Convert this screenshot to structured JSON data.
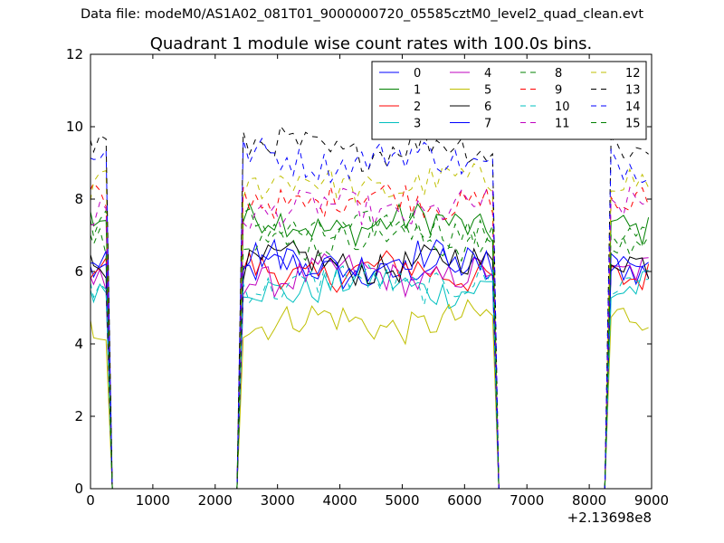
{
  "figure": {
    "suptitle": "Data file: modeM0/AS1A02_081T01_9000000720_05585cztM0_level2_quad_clean.evt"
  },
  "chart_data": {
    "type": "line",
    "title": "Quadrant 1 module wise count rates with 100.0s bins.",
    "xlabel": "",
    "ylabel": "",
    "x_offset_label": "+2.13698e8",
    "xlim": [
      0,
      9000
    ],
    "ylim": [
      0,
      12
    ],
    "xticks": [
      0,
      1000,
      2000,
      3000,
      4000,
      5000,
      6000,
      7000,
      8000,
      9000
    ],
    "yticks": [
      0,
      2,
      4,
      6,
      8,
      10,
      12
    ],
    "xtick_labels": [
      "0",
      "1000",
      "2000",
      "3000",
      "4000",
      "5000",
      "6000",
      "7000",
      "8000",
      "9000"
    ],
    "ytick_labels": [
      "0",
      "2",
      "4",
      "6",
      "8",
      "10",
      "12"
    ],
    "grid": false,
    "legend_position": "top-right",
    "legend_columns": 4,
    "x": [
      0,
      50,
      150,
      250,
      350,
      450,
      550,
      650,
      750,
      850,
      950,
      1050,
      1150,
      1250,
      1350,
      1450,
      1550,
      1650,
      1750,
      1850,
      1950,
      2050,
      2150,
      2250,
      2350,
      2450,
      2550,
      2650,
      2750,
      2850,
      2950,
      3050,
      3150,
      3250,
      3350,
      3450,
      3550,
      3650,
      3750,
      3850,
      3950,
      4050,
      4150,
      4250,
      4350,
      4450,
      4550,
      4650,
      4750,
      4850,
      4950,
      5050,
      5150,
      5250,
      5350,
      5450,
      5550,
      5650,
      5750,
      5850,
      5950,
      6050,
      6150,
      6250,
      6350,
      6450,
      6550,
      6650,
      6750,
      6850,
      6950,
      7050,
      7150,
      7250,
      7350,
      7450,
      7550,
      7650,
      7750,
      7850,
      7950,
      8050,
      8150,
      8250,
      8350,
      8450,
      8550,
      8650,
      8750,
      8850,
      8950
    ],
    "active_segments": [
      [
        0,
        250
      ],
      [
        2450,
        6450
      ],
      [
        8350,
        8950
      ]
    ],
    "series": [
      {
        "name": "0",
        "color": "#0000ff",
        "dash": "solid",
        "mean": 6.0
      },
      {
        "name": "1",
        "color": "#008000",
        "dash": "solid",
        "mean": 7.3
      },
      {
        "name": "2",
        "color": "#ff0000",
        "dash": "solid",
        "mean": 6.0
      },
      {
        "name": "3",
        "color": "#00bfbf",
        "dash": "solid",
        "mean": 5.6
      },
      {
        "name": "4",
        "color": "#bf00bf",
        "dash": "solid",
        "mean": 5.9
      },
      {
        "name": "5",
        "color": "#bfbf00",
        "dash": "solid",
        "mean": 4.6
      },
      {
        "name": "6",
        "color": "#000000",
        "dash": "solid",
        "mean": 6.2
      },
      {
        "name": "7",
        "color": "#0000ff",
        "dash": "solid",
        "mean": 6.3
      },
      {
        "name": "8",
        "color": "#008000",
        "dash": "dashed",
        "mean": 7.2
      },
      {
        "name": "9",
        "color": "#ff0000",
        "dash": "dashed",
        "mean": 8.0
      },
      {
        "name": "10",
        "color": "#00bfbf",
        "dash": "dashed",
        "mean": 5.7
      },
      {
        "name": "11",
        "color": "#bf00bf",
        "dash": "dashed",
        "mean": 7.7
      },
      {
        "name": "12",
        "color": "#bfbf00",
        "dash": "dashed",
        "mean": 8.4
      },
      {
        "name": "13",
        "color": "#000000",
        "dash": "dashed",
        "mean": 9.4
      },
      {
        "name": "14",
        "color": "#0000ff",
        "dash": "dashed",
        "mean": 9.1
      },
      {
        "name": "15",
        "color": "#008000",
        "dash": "dashed",
        "mean": 6.9
      }
    ]
  }
}
